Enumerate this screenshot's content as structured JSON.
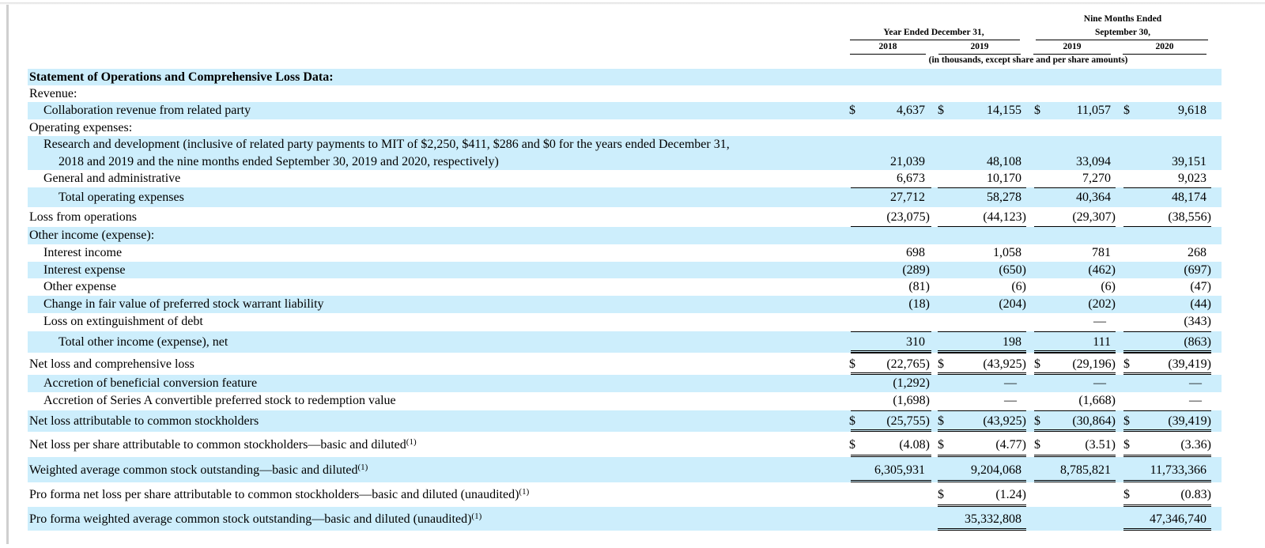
{
  "header": {
    "group_left": "Year Ended December 31,",
    "group_right_line1": "Nine Months Ended",
    "group_right_line2": "September 30,",
    "col_years": [
      "2018",
      "2019",
      "2019",
      "2020"
    ],
    "units_note": "(in thousands, except share and per share amounts)"
  },
  "rows": [
    {
      "label": "Statement of Operations and Comprehensive Loss Data:",
      "bold": true,
      "indent": 0,
      "shaded": true,
      "values": [
        "",
        "",
        "",
        ""
      ]
    },
    {
      "label": "Revenue:",
      "indent": 0,
      "shaded": false,
      "values": [
        "",
        "",
        "",
        ""
      ]
    },
    {
      "label": "Collaboration revenue from related party",
      "indent": 1,
      "shaded": true,
      "dollar": true,
      "values": [
        "4,637",
        "14,155",
        "11,057",
        "9,618"
      ]
    },
    {
      "label": "Operating expenses:",
      "indent": 0,
      "shaded": false,
      "values": [
        "",
        "",
        "",
        ""
      ]
    },
    {
      "label": "Research and development (inclusive of related party payments to MIT of $2,250, $411, $286 and $0 for the years ended December 31,",
      "label2": "2018 and 2019 and the nine months ended September 30, 2019 and 2020, respectively)",
      "indent": 1,
      "shaded": true,
      "values": [
        "21,039",
        "48,108",
        "33,094",
        "39,151"
      ]
    },
    {
      "label": "General and administrative",
      "indent": 1,
      "shaded": false,
      "values": [
        "6,673",
        "10,170",
        "7,270",
        "9,023"
      ]
    },
    {
      "label": "Total operating expenses",
      "indent": 2,
      "shaded": true,
      "values": [
        "27,712",
        "58,278",
        "40,364",
        "48,174"
      ]
    },
    {
      "label": "Loss from operations",
      "indent": 0,
      "shaded": false,
      "values": [
        "(23,075)",
        "(44,123)",
        "(29,307)",
        "(38,556)"
      ]
    },
    {
      "label": "Other income (expense):",
      "indent": 0,
      "shaded": true,
      "values": [
        "",
        "",
        "",
        ""
      ]
    },
    {
      "label": "Interest income",
      "indent": 1,
      "shaded": false,
      "values": [
        "698",
        "1,058",
        "781",
        "268"
      ]
    },
    {
      "label": "Interest expense",
      "indent": 1,
      "shaded": true,
      "values": [
        "(289)",
        "(650)",
        "(462)",
        "(697)"
      ]
    },
    {
      "label": "Other expense",
      "indent": 1,
      "shaded": false,
      "values": [
        "(81)",
        "(6)",
        "(6)",
        "(47)"
      ]
    },
    {
      "label": "Change in fair value of preferred stock warrant liability",
      "indent": 1,
      "shaded": true,
      "values": [
        "(18)",
        "(204)",
        "(202)",
        "(44)"
      ]
    },
    {
      "label": "Loss on extinguishment of debt",
      "indent": 1,
      "shaded": false,
      "values": [
        "",
        "",
        "—",
        "(343)"
      ]
    },
    {
      "label": "Total other income (expense), net",
      "indent": 2,
      "shaded": true,
      "values": [
        "310",
        "198",
        "111",
        "(863)"
      ]
    },
    {
      "label": "Net loss and comprehensive loss",
      "indent": 0,
      "shaded": false,
      "dollar": true,
      "values": [
        "(22,765)",
        "(43,925)",
        "(29,196)",
        "(39,419)"
      ]
    },
    {
      "label": "Accretion of beneficial conversion feature",
      "indent": 1,
      "shaded": true,
      "values": [
        "(1,292)",
        "—",
        "—",
        "—"
      ]
    },
    {
      "label": "Accretion of Series A convertible preferred stock to redemption value",
      "indent": 1,
      "shaded": false,
      "values": [
        "(1,698)",
        "—",
        "(1,668)",
        "—"
      ]
    },
    {
      "label": "Net loss attributable to common stockholders",
      "indent": 0,
      "shaded": true,
      "dollar": true,
      "values": [
        "(25,755)",
        "(43,925)",
        "(30,864)",
        "(39,419)"
      ]
    },
    {
      "label": "Net loss per share attributable to common stockholders—basic and diluted",
      "sup": "(1)",
      "indent": 0,
      "shaded": false,
      "dollar": true,
      "values": [
        "(4.08)",
        "(4.77)",
        "(3.51)",
        "(3.36)"
      ]
    },
    {
      "label": "Weighted average common stock outstanding—basic and diluted",
      "sup": "(1)",
      "indent": 0,
      "shaded": true,
      "values": [
        "6,305,931",
        "9,204,068",
        "8,785,821",
        "11,733,366"
      ]
    },
    {
      "label": "Pro forma net loss per share attributable to common stockholders—basic and diluted (unaudited)",
      "sup": "(1)",
      "indent": 0,
      "shaded": false,
      "dollar_cols": [
        false,
        true,
        false,
        true
      ],
      "values": [
        "",
        "(1.24)",
        "",
        "(0.83)"
      ]
    },
    {
      "label": "Pro forma weighted average common stock outstanding—basic and diluted (unaudited)",
      "sup": "(1)",
      "indent": 0,
      "shaded": true,
      "values": [
        "",
        "35,332,808",
        "",
        "47,346,740"
      ]
    }
  ],
  "currency_symbol": "$"
}
